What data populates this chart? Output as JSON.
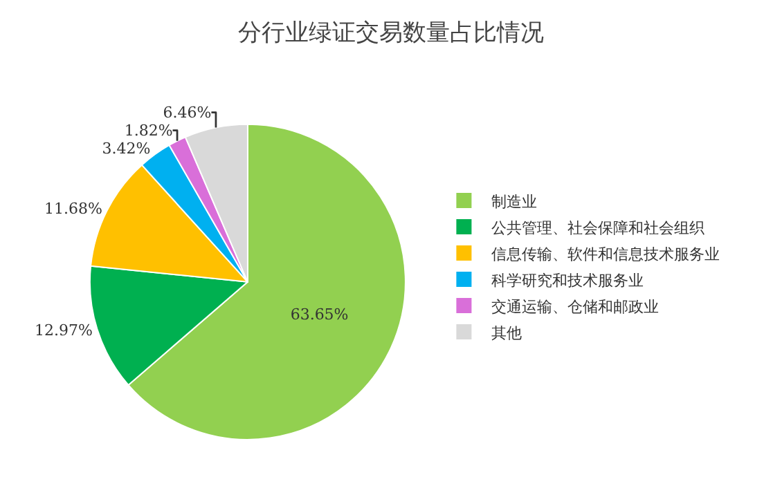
{
  "chart_data": {
    "type": "pie",
    "title": "分行业绿证交易数量占比情况",
    "categories": [
      "制造业",
      "公共管理、社会保障和社会组织",
      "信息传输、软件和信息技术服务业",
      "科学研究和技术服务业",
      "交通运输、仓储和邮政业",
      "其他"
    ],
    "values": [
      63.65,
      12.97,
      11.68,
      3.42,
      1.82,
      6.46
    ],
    "colors": [
      "#92d050",
      "#00b050",
      "#ffc000",
      "#00b0f0",
      "#d96fd9",
      "#d9d9d9"
    ],
    "value_labels": [
      "63.65%",
      "12.97%",
      "11.68%",
      "3.42%",
      "1.82%",
      "6.46%"
    ],
    "legend": "right"
  }
}
